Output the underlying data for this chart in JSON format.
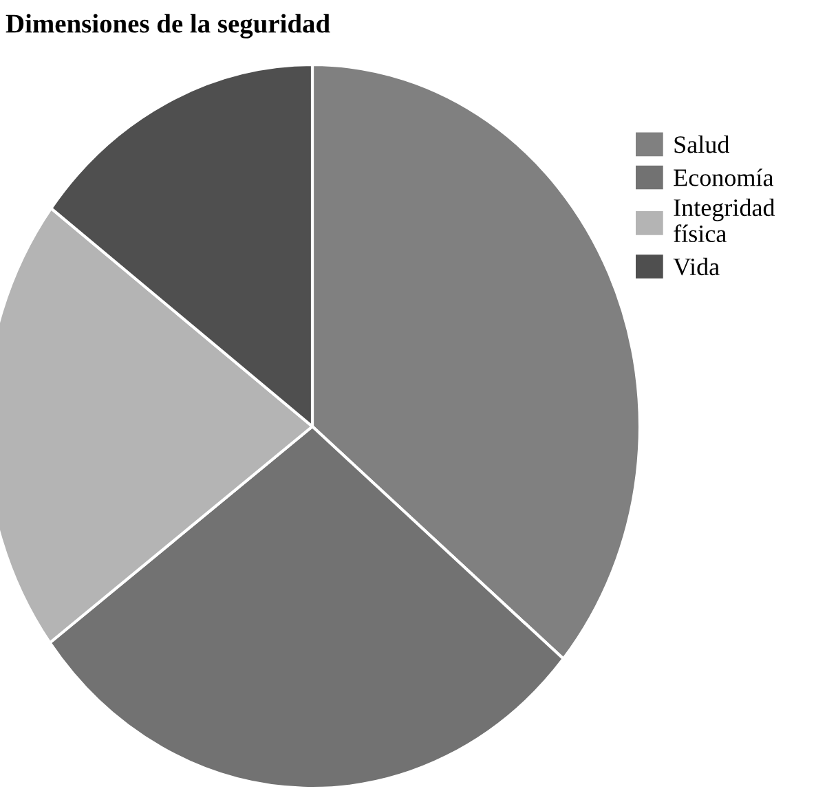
{
  "chart_data": {
    "type": "pie",
    "title": "Dimensiones de la seguridad",
    "categories": [
      "Salud",
      "Economía",
      "Integridad\nfísica",
      "Vida"
    ],
    "values": [
      36.1,
      28.7,
      20.5,
      14.7
    ],
    "colors": [
      "#808080",
      "#727272",
      "#b4b4b4",
      "#4f4f4f"
    ],
    "legend": "right"
  }
}
